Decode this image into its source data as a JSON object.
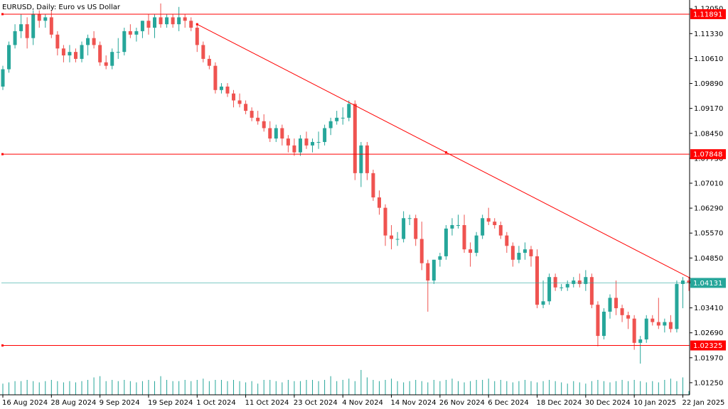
{
  "chart_data": {
    "type": "candlestick",
    "title": "EURUSD, Daily:  Euro vs US Dollar",
    "symbol": "EURUSD",
    "timeframe": "Daily",
    "description": "Euro vs US Dollar",
    "ylim": [
      1.009,
      1.123
    ],
    "y_ticks": [
      "1.12050",
      "1.11330",
      "1.10610",
      "1.09890",
      "1.09170",
      "1.08450",
      "1.07730",
      "1.07010",
      "1.06290",
      "1.05570",
      "1.04850",
      "1.04130",
      "1.03410",
      "1.02690",
      "1.01970",
      "1.01250"
    ],
    "x_tick_labels": [
      "16 Aug 2024",
      "28 Aug 2024",
      "9 Sep 2024",
      "19 Sep 2024",
      "1 Oct 2024",
      "11 Oct 2024",
      "23 Oct 2024",
      "4 Nov 2024",
      "14 Nov 2024",
      "26 Nov 2024",
      "6 Dec 2024",
      "18 Dec 2024",
      "30 Dec 2024",
      "10 Jan 2025",
      "22 Jan 2025"
    ],
    "x_tick_bar_index": [
      0,
      8,
      16,
      24,
      32,
      40,
      48,
      56,
      64,
      72,
      80,
      88,
      96,
      104,
      112
    ],
    "candles": [
      [
        1.098,
        1.104,
        1.097,
        1.103
      ],
      [
        1.103,
        1.111,
        1.102,
        1.11
      ],
      [
        1.11,
        1.116,
        1.109,
        1.114
      ],
      [
        1.114,
        1.119,
        1.112,
        1.116
      ],
      [
        1.116,
        1.118,
        1.109,
        1.112
      ],
      [
        1.112,
        1.12,
        1.11,
        1.119
      ],
      [
        1.119,
        1.12,
        1.115,
        1.117
      ],
      [
        1.117,
        1.119,
        1.115,
        1.118
      ],
      [
        1.118,
        1.12,
        1.112,
        1.113
      ],
      [
        1.113,
        1.114,
        1.107,
        1.109
      ],
      [
        1.109,
        1.11,
        1.105,
        1.107
      ],
      [
        1.107,
        1.11,
        1.105,
        1.108
      ],
      [
        1.108,
        1.109,
        1.105,
        1.106
      ],
      [
        1.106,
        1.111,
        1.105,
        1.11
      ],
      [
        1.11,
        1.113,
        1.107,
        1.112
      ],
      [
        1.112,
        1.114,
        1.109,
        1.11
      ],
      [
        1.11,
        1.111,
        1.104,
        1.105
      ],
      [
        1.105,
        1.107,
        1.103,
        1.104
      ],
      [
        1.104,
        1.109,
        1.103,
        1.108
      ],
      [
        1.108,
        1.112,
        1.106,
        1.108
      ],
      [
        1.108,
        1.115,
        1.107,
        1.114
      ],
      [
        1.114,
        1.116,
        1.112,
        1.113
      ],
      [
        1.113,
        1.115,
        1.111,
        1.114
      ],
      [
        1.114,
        1.117,
        1.112,
        1.117
      ],
      [
        1.117,
        1.119,
        1.113,
        1.115
      ],
      [
        1.115,
        1.119,
        1.112,
        1.118
      ],
      [
        1.118,
        1.122,
        1.115,
        1.116
      ],
      [
        1.116,
        1.119,
        1.115,
        1.118
      ],
      [
        1.118,
        1.119,
        1.115,
        1.116
      ],
      [
        1.116,
        1.121,
        1.114,
        1.118
      ],
      [
        1.118,
        1.119,
        1.115,
        1.117
      ],
      [
        1.117,
        1.118,
        1.114,
        1.115
      ],
      [
        1.115,
        1.116,
        1.108,
        1.11
      ],
      [
        1.11,
        1.111,
        1.105,
        1.106
      ],
      [
        1.106,
        1.107,
        1.103,
        1.104
      ],
      [
        1.104,
        1.105,
        1.096,
        1.097
      ],
      [
        1.097,
        1.099,
        1.096,
        1.098
      ],
      [
        1.098,
        1.099,
        1.095,
        1.096
      ],
      [
        1.096,
        1.097,
        1.092,
        1.094
      ],
      [
        1.094,
        1.096,
        1.092,
        1.093
      ],
      [
        1.093,
        1.094,
        1.09,
        1.091
      ],
      [
        1.091,
        1.092,
        1.088,
        1.089
      ],
      [
        1.089,
        1.091,
        1.087,
        1.088
      ],
      [
        1.088,
        1.09,
        1.085,
        1.086
      ],
      [
        1.086,
        1.088,
        1.082,
        1.083
      ],
      [
        1.083,
        1.087,
        1.082,
        1.086
      ],
      [
        1.086,
        1.087,
        1.081,
        1.083
      ],
      [
        1.083,
        1.084,
        1.079,
        1.081
      ],
      [
        1.081,
        1.083,
        1.078,
        1.079
      ],
      [
        1.079,
        1.084,
        1.078,
        1.083
      ],
      [
        1.083,
        1.085,
        1.08,
        1.081
      ],
      [
        1.081,
        1.083,
        1.079,
        1.082
      ],
      [
        1.082,
        1.085,
        1.08,
        1.082
      ],
      [
        1.082,
        1.087,
        1.081,
        1.086
      ],
      [
        1.086,
        1.089,
        1.084,
        1.088
      ],
      [
        1.088,
        1.091,
        1.087,
        1.089
      ],
      [
        1.089,
        1.092,
        1.087,
        1.089
      ],
      [
        1.089,
        1.094,
        1.088,
        1.093
      ],
      [
        1.093,
        1.094,
        1.071,
        1.073
      ],
      [
        1.073,
        1.082,
        1.069,
        1.081
      ],
      [
        1.081,
        1.082,
        1.071,
        1.073
      ],
      [
        1.073,
        1.074,
        1.065,
        1.066
      ],
      [
        1.066,
        1.068,
        1.061,
        1.063
      ],
      [
        1.063,
        1.064,
        1.052,
        1.055
      ],
      [
        1.055,
        1.058,
        1.051,
        1.054
      ],
      [
        1.054,
        1.056,
        1.052,
        1.054
      ],
      [
        1.054,
        1.062,
        1.053,
        1.06
      ],
      [
        1.06,
        1.061,
        1.058,
        1.06
      ],
      [
        1.06,
        1.061,
        1.052,
        1.054
      ],
      [
        1.054,
        1.059,
        1.045,
        1.047
      ],
      [
        1.047,
        1.048,
        1.033,
        1.042
      ],
      [
        1.042,
        1.048,
        1.041,
        1.048
      ],
      [
        1.048,
        1.05,
        1.046,
        1.049
      ],
      [
        1.049,
        1.058,
        1.048,
        1.057
      ],
      [
        1.057,
        1.06,
        1.055,
        1.058
      ],
      [
        1.058,
        1.061,
        1.057,
        1.058
      ],
      [
        1.058,
        1.061,
        1.05,
        1.051
      ],
      [
        1.051,
        1.053,
        1.046,
        1.05
      ],
      [
        1.05,
        1.056,
        1.049,
        1.055
      ],
      [
        1.055,
        1.061,
        1.054,
        1.06
      ],
      [
        1.06,
        1.063,
        1.058,
        1.059
      ],
      [
        1.059,
        1.06,
        1.057,
        1.058
      ],
      [
        1.058,
        1.059,
        1.054,
        1.055
      ],
      [
        1.055,
        1.056,
        1.05,
        1.052
      ],
      [
        1.052,
        1.053,
        1.046,
        1.048
      ],
      [
        1.048,
        1.052,
        1.047,
        1.05
      ],
      [
        1.05,
        1.053,
        1.048,
        1.051
      ],
      [
        1.051,
        1.052,
        1.046,
        1.049
      ],
      [
        1.049,
        1.051,
        1.034,
        1.035
      ],
      [
        1.035,
        1.042,
        1.034,
        1.036
      ],
      [
        1.036,
        1.044,
        1.035,
        1.043
      ],
      [
        1.043,
        1.044,
        1.039,
        1.04
      ],
      [
        1.04,
        1.041,
        1.039,
        1.04
      ],
      [
        1.04,
        1.042,
        1.039,
        1.041
      ],
      [
        1.041,
        1.043,
        1.04,
        1.042
      ],
      [
        1.042,
        1.044,
        1.04,
        1.041
      ],
      [
        1.041,
        1.045,
        1.039,
        1.043
      ],
      [
        1.043,
        1.044,
        1.034,
        1.035
      ],
      [
        1.035,
        1.036,
        1.023,
        1.026
      ],
      [
        1.026,
        1.034,
        1.025,
        1.033
      ],
      [
        1.033,
        1.038,
        1.031,
        1.037
      ],
      [
        1.037,
        1.042,
        1.032,
        1.034
      ],
      [
        1.034,
        1.035,
        1.03,
        1.032
      ],
      [
        1.032,
        1.033,
        1.028,
        1.031
      ],
      [
        1.031,
        1.032,
        1.022,
        1.024
      ],
      [
        1.024,
        1.026,
        1.018,
        1.025
      ],
      [
        1.025,
        1.032,
        1.024,
        1.031
      ],
      [
        1.031,
        1.032,
        1.029,
        1.03
      ],
      [
        1.03,
        1.037,
        1.028,
        1.029
      ],
      [
        1.029,
        1.031,
        1.027,
        1.03
      ],
      [
        1.03,
        1.032,
        1.027,
        1.028
      ],
      [
        1.028,
        1.042,
        1.027,
        1.041
      ],
      [
        1.041,
        1.043,
        1.034,
        1.042
      ],
      [
        1.042,
        1.043,
        1.039,
        1.0413
      ]
    ],
    "volumes": [
      0.45,
      0.5,
      0.55,
      0.55,
      0.6,
      0.55,
      0.5,
      0.55,
      0.6,
      0.55,
      0.5,
      0.55,
      0.5,
      0.55,
      0.6,
      0.7,
      0.75,
      0.55,
      0.6,
      0.55,
      0.6,
      0.55,
      0.5,
      0.55,
      0.6,
      0.55,
      0.75,
      0.6,
      0.55,
      0.55,
      0.6,
      0.55,
      0.6,
      0.65,
      0.55,
      0.6,
      0.6,
      0.55,
      0.6,
      0.55,
      0.5,
      0.55,
      0.45,
      0.6,
      0.6,
      0.55,
      0.5,
      0.6,
      0.55,
      0.55,
      0.6,
      0.6,
      0.55,
      0.6,
      0.75,
      0.55,
      0.6,
      0.65,
      0.55,
      1.0,
      0.7,
      0.6,
      0.55,
      0.6,
      0.65,
      0.55,
      0.5,
      0.55,
      0.6,
      0.55,
      0.5,
      0.6,
      0.55,
      0.6,
      0.65,
      0.55,
      0.5,
      0.55,
      0.6,
      0.6,
      0.65,
      0.55,
      0.6,
      0.55,
      0.5,
      0.55,
      0.6,
      0.55,
      0.5,
      0.55,
      0.6,
      0.55,
      0.5,
      0.45,
      0.55,
      0.5,
      0.45,
      0.55,
      0.6,
      0.55,
      0.5,
      0.55,
      0.6,
      0.55,
      0.6,
      0.55,
      0.5,
      0.55,
      0.5,
      0.6,
      0.65,
      0.55,
      0.7,
      0.15
    ],
    "horizontal_lines": [
      {
        "price": 1.11891,
        "label": "1.11891",
        "color": "#ff0000"
      },
      {
        "price": 1.07848,
        "label": "1.07848",
        "color": "#ff0000"
      },
      {
        "price": 1.02325,
        "label": "1.02325",
        "color": "#ff0000"
      }
    ],
    "current_price": {
      "price": 1.04131,
      "label": "1.04131",
      "color": "#26a69a"
    },
    "trendline": {
      "from": {
        "bar": 32,
        "price": 1.116
      },
      "to": {
        "bar": 114,
        "price": 1.042
      },
      "color": "#ff0000"
    },
    "colors": {
      "bull": "#26a69a",
      "bear": "#ef5350",
      "volume": "#26a69a",
      "grid": "#000000"
    }
  }
}
